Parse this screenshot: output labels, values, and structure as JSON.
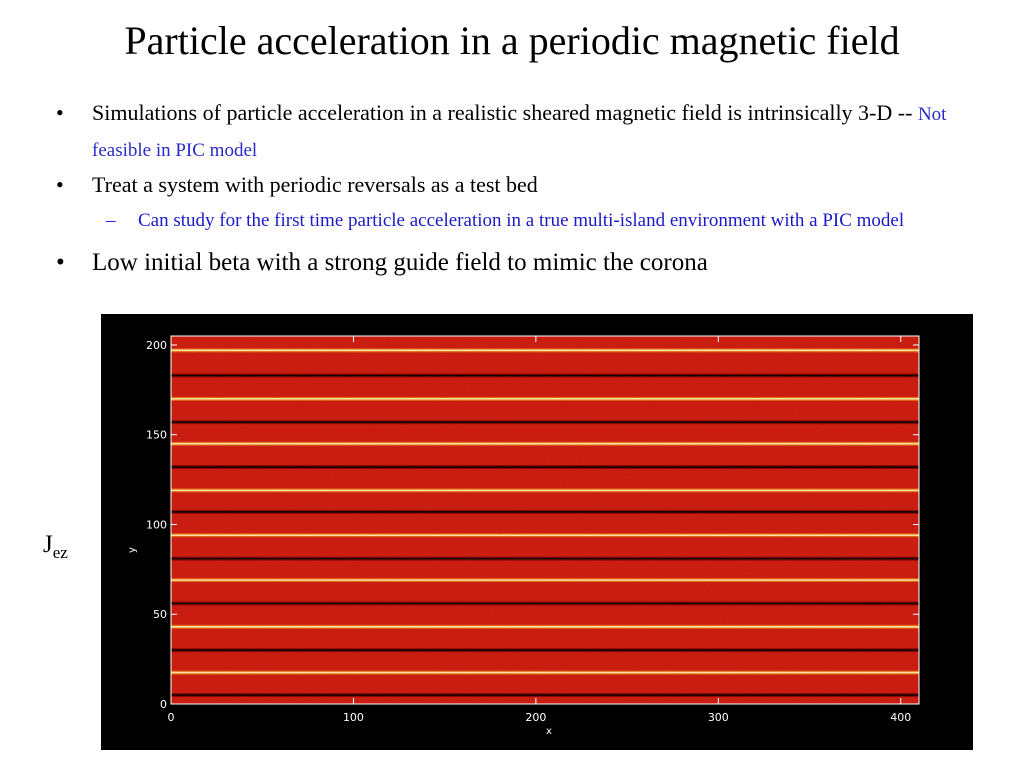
{
  "slide": {
    "title": "Particle acceleration in a periodic magnetic field",
    "bullet_symbol": "•",
    "dash_symbol": "–",
    "bullets": [
      {
        "text": "Simulations of particle acceleration in a realistic sheared magnetic field is intrinsically 3-D",
        "separator": "--",
        "note": "Not feasible in PIC model"
      },
      {
        "text": "Treat a system with periodic reversals as a test bed",
        "sub": "Can study for the first time particle acceleration in a true multi-island environment with a PIC model"
      },
      {
        "text": "Low initial beta with a strong guide field to mimic the corona"
      }
    ],
    "side_label": {
      "main": "J",
      "subscript": "ez"
    }
  },
  "colors": {
    "background": "#ffffff",
    "note_blue": "#2a2ac8",
    "plot_field": "#c4160c",
    "plot_background": "#000000",
    "bright_band": "#ffe39a",
    "dark_band": "#1a0000"
  },
  "chart_data": {
    "type": "heatmap",
    "title": "",
    "xlabel": "x",
    "ylabel": "y",
    "xlim": [
      0,
      410
    ],
    "ylim": [
      0,
      205
    ],
    "xticks": [
      0,
      100,
      200,
      300,
      400
    ],
    "yticks": [
      0,
      50,
      100,
      150,
      200
    ],
    "grid": false,
    "bands": [
      {
        "kind": "dark",
        "y": 5
      },
      {
        "kind": "bright",
        "y": 17.5
      },
      {
        "kind": "dark",
        "y": 30
      },
      {
        "kind": "bright",
        "y": 43
      },
      {
        "kind": "dark",
        "y": 56
      },
      {
        "kind": "bright",
        "y": 69
      },
      {
        "kind": "dark",
        "y": 81
      },
      {
        "kind": "bright",
        "y": 94
      },
      {
        "kind": "dark",
        "y": 107
      },
      {
        "kind": "bright",
        "y": 119
      },
      {
        "kind": "dark",
        "y": 132
      },
      {
        "kind": "bright",
        "y": 145
      },
      {
        "kind": "dark",
        "y": 157
      },
      {
        "kind": "bright",
        "y": 170
      },
      {
        "kind": "dark",
        "y": 183
      },
      {
        "kind": "bright",
        "y": 197
      }
    ]
  }
}
